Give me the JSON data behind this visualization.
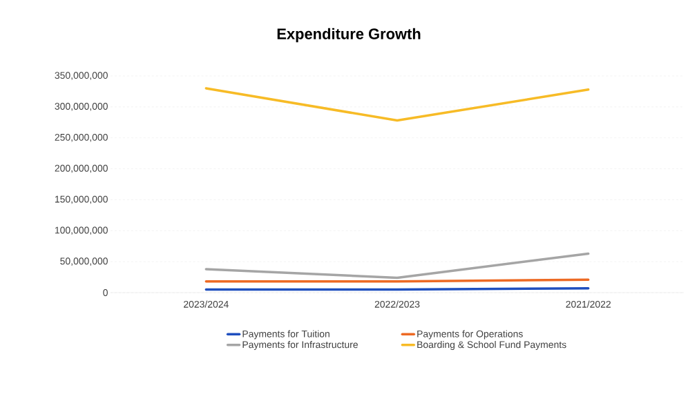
{
  "chart_data": {
    "type": "line",
    "title": "Expenditure Growth",
    "categories": [
      "2023/2024",
      "2022/2023",
      "2021/2022"
    ],
    "series": [
      {
        "name": "Payments for Tuition",
        "color": "#1f4fbf",
        "values": [
          5000000,
          5000000,
          7000000
        ]
      },
      {
        "name": "Payments for Operations",
        "color": "#ed6a24",
        "values": [
          18000000,
          18000000,
          21000000
        ]
      },
      {
        "name": "Payments for Infrastructure",
        "color": "#a5a5a5",
        "values": [
          38000000,
          24000000,
          63000000
        ]
      },
      {
        "name": "Boarding & School Fund Payments",
        "color": "#f7bb26",
        "values": [
          330000000,
          278000000,
          328000000
        ]
      }
    ],
    "ylim": [
      0,
      350000000
    ],
    "yticks": [
      {
        "value": 0,
        "label": "0"
      },
      {
        "value": 50000000,
        "label": "50,000,000"
      },
      {
        "value": 100000000,
        "label": "100,000,000"
      },
      {
        "value": 150000000,
        "label": "150,000,000"
      },
      {
        "value": 200000000,
        "label": "200,000,000"
      },
      {
        "value": 250000000,
        "label": "250,000,000"
      },
      {
        "value": 300000000,
        "label": "300,000,000"
      },
      {
        "value": 350000000,
        "label": "350,000,000"
      }
    ],
    "grid": "y",
    "legend": "bottom",
    "marker": "none",
    "line_style": "solid"
  }
}
